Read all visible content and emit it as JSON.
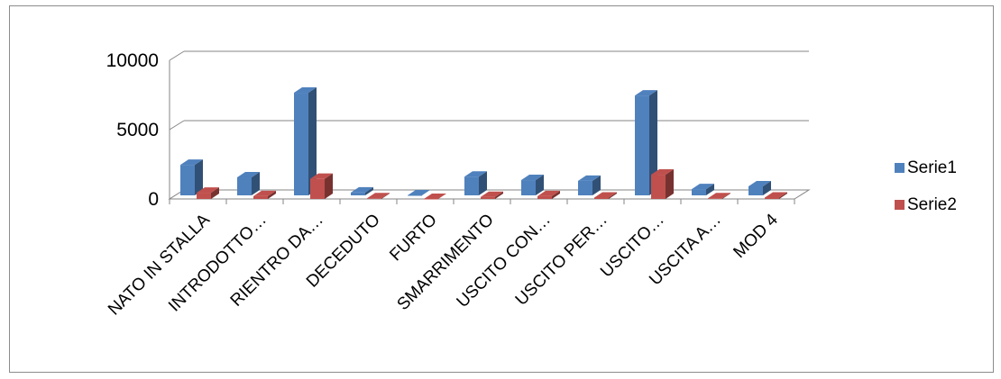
{
  "chart_data": {
    "type": "bar",
    "style": "3d-clustered-column",
    "categories": [
      "NATO IN STALLA",
      "INTRODOTTO…",
      "RIENTRO DA…",
      "DECEDUTO",
      "FURTO",
      "SMARRIMENTO",
      "USCITO CON…",
      "USCITO PER…",
      "USCITO…",
      "USCITA A…",
      "MOD 4"
    ],
    "series": [
      {
        "name": "Serie1",
        "color": "#4f81bd",
        "values": [
          2200,
          1300,
          7400,
          200,
          0,
          1350,
          1100,
          1050,
          7200,
          450,
          650
        ]
      },
      {
        "name": "Serie2",
        "color": "#c0504d",
        "values": [
          450,
          200,
          1450,
          50,
          0,
          150,
          200,
          100,
          1750,
          50,
          100
        ]
      }
    ],
    "yticks": [
      0,
      5000,
      10000
    ],
    "ylim": [
      0,
      10000
    ],
    "grid": true,
    "legend_position": "right"
  }
}
